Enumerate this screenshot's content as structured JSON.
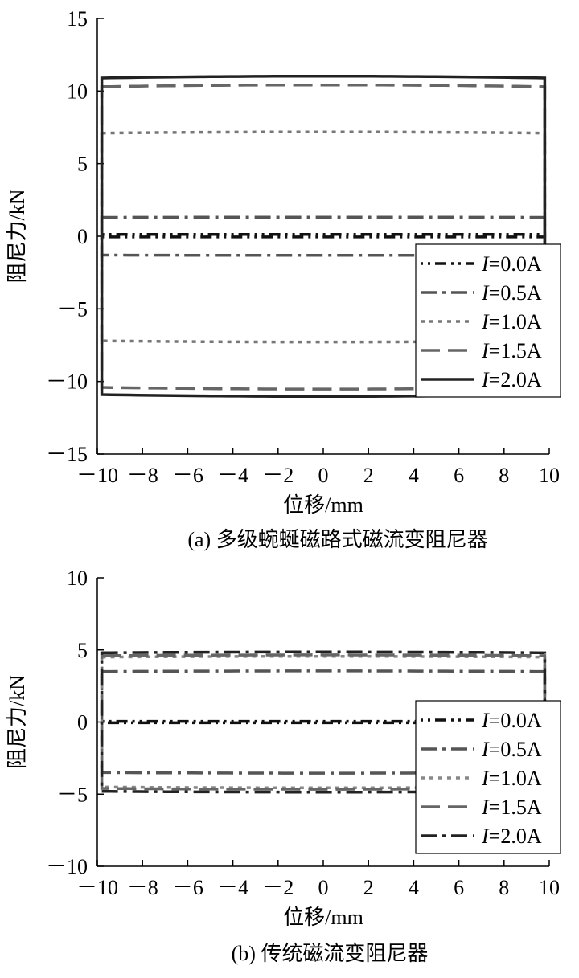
{
  "panels": [
    {
      "caption": "(a) 多级蜿蜒磁路式磁流变阻尼器",
      "chart_data": {
        "type": "line",
        "xlabel": "位移/mm",
        "ylabel": "阻尼力/kN",
        "xlim": [
          -10,
          10
        ],
        "ylim": [
          -15,
          15
        ],
        "xticks": [
          -10,
          -8,
          -6,
          -4,
          -2,
          0,
          2,
          4,
          6,
          8,
          10
        ],
        "xtick_labels": [
          "－10",
          "－8",
          "－6",
          "－4",
          "－2",
          "0",
          "2",
          "4",
          "6",
          "8",
          "10"
        ],
        "yticks": [
          -15,
          -10,
          -5,
          0,
          5,
          10,
          15
        ],
        "ytick_labels": [
          "－15",
          "－10",
          "－5",
          "0",
          "5",
          "10",
          "15"
        ],
        "grid": false,
        "legend_position": "bottom-right",
        "legend_prefix": "I",
        "series": [
          {
            "name": "=0.0A",
            "color": "#111111",
            "dash": "dotdotdash",
            "loop": [
              0.12,
              -0.05
            ]
          },
          {
            "name": "=0.5A",
            "color": "#555555",
            "dash": "dashdot",
            "loop": [
              1.3,
              -1.3
            ]
          },
          {
            "name": "=1.0A",
            "color": "#777777",
            "dash": "dot",
            "loop": [
              7.1,
              -7.2
            ]
          },
          {
            "name": "=1.5A",
            "color": "#666666",
            "dash": "longdash",
            "loop": [
              10.3,
              -10.4
            ]
          },
          {
            "name": "=2.0A",
            "color": "#222222",
            "dash": "solid",
            "loop": [
              10.9,
              -10.9
            ]
          }
        ]
      }
    },
    {
      "caption": "(b) 传统磁流变阻尼器",
      "chart_data": {
        "type": "line",
        "xlabel": "位移/mm",
        "ylabel": "阻尼力/kN",
        "xlim": [
          -10,
          10
        ],
        "ylim": [
          -10,
          10
        ],
        "xticks": [
          -10,
          -8,
          -6,
          -4,
          -2,
          0,
          2,
          4,
          6,
          8,
          10
        ],
        "xtick_labels": [
          "－10",
          "－8",
          "－6",
          "－4",
          "－2",
          "0",
          "2",
          "4",
          "6",
          "8",
          "10"
        ],
        "yticks": [
          -10,
          -5,
          0,
          5,
          10
        ],
        "ytick_labels": [
          "－10",
          "－5",
          "0",
          "5",
          "10"
        ],
        "grid": false,
        "legend_position": "bottom-right",
        "legend_prefix": "I",
        "series": [
          {
            "name": "=0.0A",
            "color": "#111111",
            "dash": "dotdotdash",
            "loop": [
              0.05,
              -0.05
            ]
          },
          {
            "name": "=0.5A",
            "color": "#555555",
            "dash": "dashdot",
            "loop": [
              3.5,
              -3.5
            ]
          },
          {
            "name": "=1.0A",
            "color": "#888888",
            "dash": "dot",
            "loop": [
              4.5,
              -4.5
            ]
          },
          {
            "name": "=1.5A",
            "color": "#666666",
            "dash": "longdash",
            "loop": [
              4.6,
              -4.6
            ]
          },
          {
            "name": "=2.0A",
            "color": "#222222",
            "dash": "dashdot",
            "loop": [
              4.8,
              -4.8
            ]
          }
        ]
      }
    }
  ]
}
